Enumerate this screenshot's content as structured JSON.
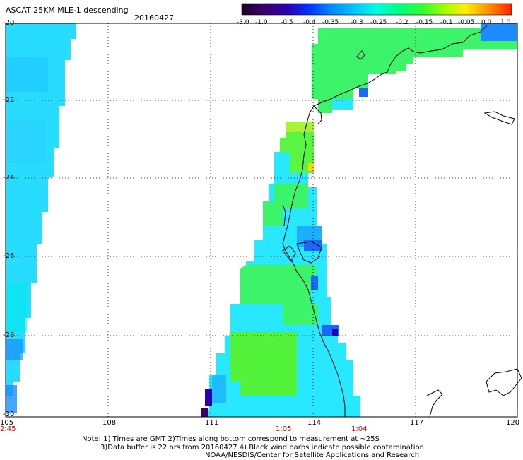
{
  "header": {
    "title": "ASCAT 25KM MLE-1 descending",
    "date": "20160427"
  },
  "colorbar": {
    "labels": [
      "-3.0",
      "-1.0",
      "-0.5",
      "-0.4",
      "-0.35",
      "-0.3",
      "-0.25",
      "-0.2",
      "-0.15",
      "-0.1",
      "-0.05",
      "0.0",
      "1.0"
    ],
    "colors": [
      "#1a0020",
      "#3b0066",
      "#2a00b0",
      "#0033ff",
      "#0088ff",
      "#00c8ff",
      "#00ffe0",
      "#00ff80",
      "#30ff30",
      "#a0ff00",
      "#ffee00",
      "#ff8800",
      "#ff2000"
    ]
  },
  "axes": {
    "lat_labels": [
      "-20",
      "-22",
      "-24",
      "-26",
      "-28",
      "-30"
    ],
    "lon_labels": [
      "105",
      "108",
      "111",
      "114",
      "117",
      "120"
    ],
    "times": [
      "2:45",
      "1:05",
      "1:04"
    ]
  },
  "notes": [
    "Note: 1) Times are GMT 2)Times along bottom correspond to measurement at ~25S",
    "3)Data buffer is 22 hrs from 20160427 4) Black wind barbs indicate possible contamination",
    "NOAA/NESDIS/Center for Satellite Applications and Research"
  ]
}
